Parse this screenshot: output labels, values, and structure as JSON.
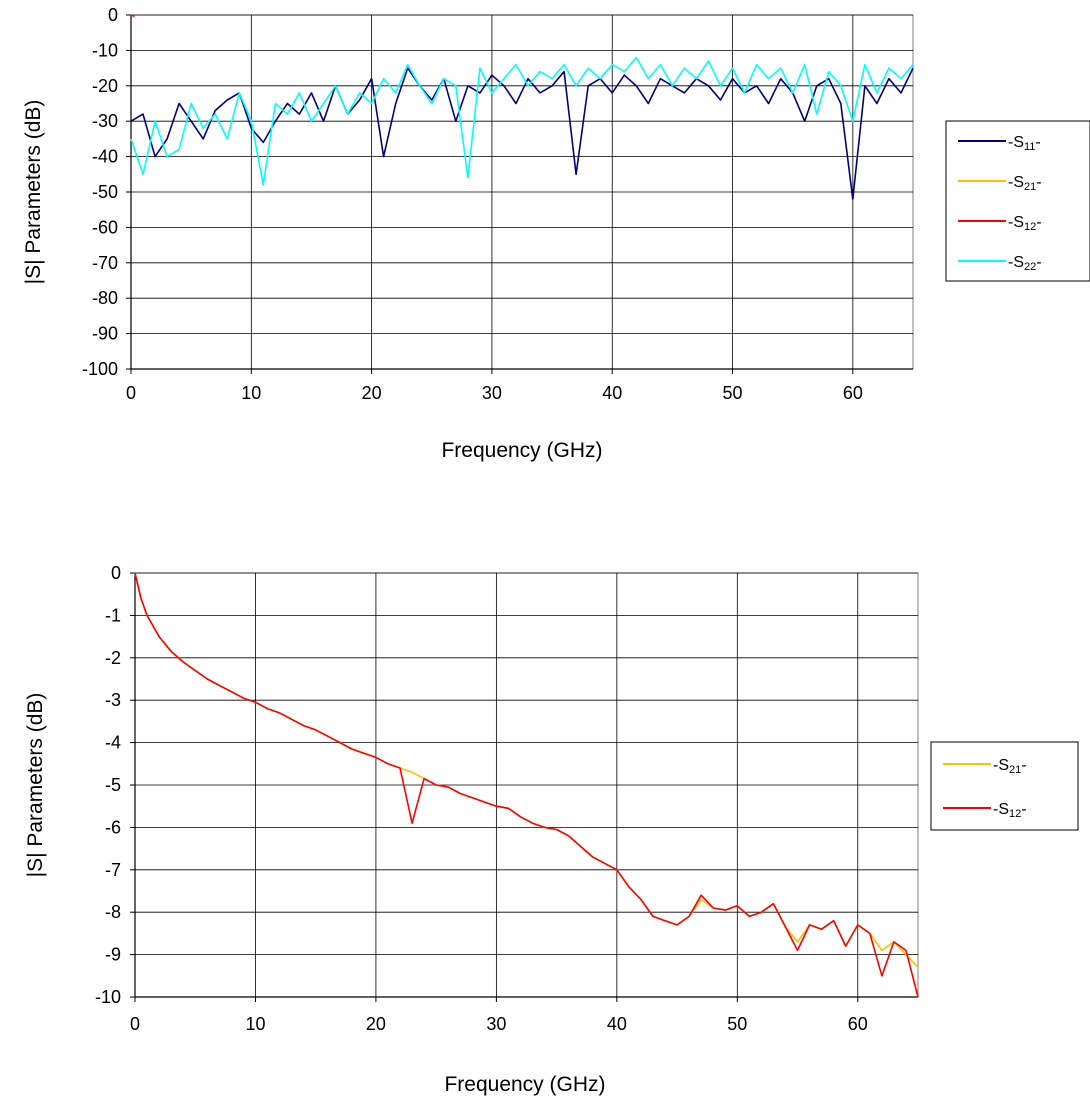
{
  "chart_data": [
    {
      "type": "line",
      "title": "",
      "xlabel": "Frequency (GHz)",
      "ylabel": "|S| Parameters (dB)",
      "xlim": [
        0,
        65
      ],
      "ylim": [
        -100,
        0
      ],
      "xticks": [
        0,
        10,
        20,
        30,
        40,
        50,
        60
      ],
      "yticks": [
        0,
        -10,
        -20,
        -30,
        -40,
        -50,
        -60,
        -70,
        -80,
        -90,
        -100
      ],
      "grid": true,
      "legend_position": "right",
      "legend": [
        {
          "label": "-S",
          "sub": "11",
          "suffix": "-",
          "color": "#000080"
        },
        {
          "label": "-S",
          "sub": "21",
          "suffix": "-",
          "color": "#FFC000"
        },
        {
          "label": "-S",
          "sub": "12",
          "suffix": "-",
          "color": "#FF0000"
        },
        {
          "label": "-S",
          "sub": "22",
          "suffix": "-",
          "color": "#00FFFF"
        }
      ],
      "series": [
        {
          "name": "-S11-",
          "color": "#000080",
          "x": [
            0,
            1,
            2,
            3,
            4,
            5,
            6,
            7,
            8,
            9,
            10,
            11,
            12,
            13,
            14,
            15,
            16,
            17,
            18,
            19,
            20,
            21,
            22,
            23,
            24,
            25,
            26,
            27,
            28,
            29,
            30,
            31,
            32,
            33,
            34,
            35,
            36,
            37,
            38,
            39,
            40,
            41,
            42,
            43,
            44,
            45,
            46,
            47,
            48,
            49,
            50,
            51,
            52,
            53,
            54,
            55,
            56,
            57,
            58,
            59,
            60,
            61,
            62,
            63,
            64,
            65
          ],
          "y": [
            -30,
            -28,
            -40,
            -35,
            -25,
            -30,
            -35,
            -27,
            -24,
            -22,
            -32,
            -36,
            -30,
            -25,
            -28,
            -22,
            -30,
            -20,
            -28,
            -24,
            -18,
            -40,
            -25,
            -15,
            -20,
            -24,
            -18,
            -30,
            -20,
            -22,
            -17,
            -20,
            -25,
            -18,
            -22,
            -20,
            -16,
            -45,
            -20,
            -18,
            -22,
            -17,
            -20,
            -25,
            -18,
            -20,
            -22,
            -18,
            -20,
            -24,
            -18,
            -22,
            -20,
            -25,
            -18,
            -22,
            -30,
            -20,
            -18,
            -25,
            -52,
            -20,
            -25,
            -18,
            -22,
            -15
          ]
        },
        {
          "name": "-S21-",
          "color": "#FFC000",
          "x": [
            0,
            0.3
          ],
          "y": [
            0,
            -0.3
          ]
        },
        {
          "name": "-S12-",
          "color": "#FF0000",
          "x": [
            0,
            0.3
          ],
          "y": [
            0,
            -0.4
          ]
        },
        {
          "name": "-S22-",
          "color": "#00FFFF",
          "x": [
            0,
            1,
            2,
            3,
            4,
            5,
            6,
            7,
            8,
            9,
            10,
            11,
            12,
            13,
            14,
            15,
            16,
            17,
            18,
            19,
            20,
            21,
            22,
            23,
            24,
            25,
            26,
            27,
            28,
            29,
            30,
            31,
            32,
            33,
            34,
            35,
            36,
            37,
            38,
            39,
            40,
            41,
            42,
            43,
            44,
            45,
            46,
            47,
            48,
            49,
            50,
            51,
            52,
            53,
            54,
            55,
            56,
            57,
            58,
            59,
            60,
            61,
            62,
            63,
            64,
            65
          ],
          "y": [
            -35,
            -45,
            -30,
            -40,
            -38,
            -25,
            -32,
            -28,
            -35,
            -22,
            -30,
            -48,
            -25,
            -28,
            -22,
            -30,
            -25,
            -20,
            -28,
            -22,
            -25,
            -18,
            -22,
            -14,
            -20,
            -25,
            -18,
            -20,
            -46,
            -15,
            -22,
            -18,
            -14,
            -20,
            -16,
            -18,
            -14,
            -20,
            -15,
            -18,
            -14,
            -16,
            -12,
            -18,
            -14,
            -20,
            -15,
            -18,
            -13,
            -20,
            -15,
            -22,
            -14,
            -18,
            -15,
            -22,
            -14,
            -28,
            -16,
            -20,
            -30,
            -14,
            -22,
            -15,
            -18,
            -14
          ]
        }
      ]
    },
    {
      "type": "line",
      "title": "",
      "xlabel": "Frequency (GHz)",
      "ylabel": "|S| Parameters (dB)",
      "xlim": [
        0,
        65
      ],
      "ylim": [
        -10,
        0
      ],
      "xticks": [
        0,
        10,
        20,
        30,
        40,
        50,
        60
      ],
      "yticks": [
        0,
        -1,
        -2,
        -3,
        -4,
        -5,
        -6,
        -7,
        -8,
        -9,
        -10
      ],
      "grid": true,
      "legend_position": "right",
      "legend": [
        {
          "label": "-S",
          "sub": "21",
          "suffix": "-",
          "color": "#FFC000"
        },
        {
          "label": "-S",
          "sub": "12",
          "suffix": "-",
          "color": "#FF0000"
        }
      ],
      "series": [
        {
          "name": "-S21-",
          "color": "#FFC000",
          "x": [
            0,
            0.5,
            1,
            2,
            3,
            4,
            5,
            6,
            7,
            8,
            9,
            10,
            11,
            12,
            13,
            14,
            15,
            16,
            17,
            18,
            19,
            20,
            21,
            22,
            23,
            24,
            25,
            26,
            27,
            28,
            29,
            30,
            31,
            32,
            33,
            34,
            35,
            36,
            37,
            38,
            39,
            40,
            41,
            42,
            43,
            44,
            45,
            46,
            47,
            48,
            49,
            50,
            51,
            52,
            53,
            54,
            55,
            56,
            57,
            58,
            59,
            60,
            61,
            62,
            63,
            64,
            65
          ],
          "y": [
            0,
            -0.6,
            -1.0,
            -1.5,
            -1.85,
            -2.1,
            -2.3,
            -2.5,
            -2.65,
            -2.8,
            -2.95,
            -3.05,
            -3.2,
            -3.3,
            -3.45,
            -3.6,
            -3.7,
            -3.85,
            -4.0,
            -4.15,
            -4.25,
            -4.35,
            -4.5,
            -4.6,
            -4.7,
            -4.85,
            -5.0,
            -5.05,
            -5.2,
            -5.3,
            -5.4,
            -5.5,
            -5.55,
            -5.75,
            -5.9,
            -6.0,
            -6.05,
            -6.2,
            -6.45,
            -6.7,
            -6.85,
            -7.0,
            -7.4,
            -7.7,
            -8.1,
            -8.2,
            -8.3,
            -8.1,
            -7.7,
            -7.9,
            -7.95,
            -7.85,
            -8.1,
            -8.0,
            -7.8,
            -8.35,
            -8.7,
            -8.3,
            -8.4,
            -8.2,
            -8.8,
            -8.3,
            -8.5,
            -8.9,
            -8.7,
            -9.0,
            -9.3
          ]
        },
        {
          "name": "-S12-",
          "color": "#FF0000",
          "x": [
            0,
            0.5,
            1,
            2,
            3,
            4,
            5,
            6,
            7,
            8,
            9,
            10,
            11,
            12,
            13,
            14,
            15,
            16,
            17,
            18,
            19,
            20,
            21,
            22,
            23,
            24,
            25,
            26,
            27,
            28,
            29,
            30,
            31,
            32,
            33,
            34,
            35,
            36,
            37,
            38,
            39,
            40,
            41,
            42,
            43,
            44,
            45,
            46,
            47,
            48,
            49,
            50,
            51,
            52,
            53,
            54,
            55,
            56,
            57,
            58,
            59,
            60,
            61,
            62,
            63,
            64,
            65
          ],
          "y": [
            0,
            -0.6,
            -1.0,
            -1.5,
            -1.85,
            -2.1,
            -2.3,
            -2.5,
            -2.65,
            -2.8,
            -2.95,
            -3.05,
            -3.2,
            -3.3,
            -3.45,
            -3.6,
            -3.7,
            -3.85,
            -4.0,
            -4.15,
            -4.25,
            -4.35,
            -4.5,
            -4.6,
            -5.9,
            -4.85,
            -5.0,
            -5.05,
            -5.2,
            -5.3,
            -5.4,
            -5.5,
            -5.55,
            -5.75,
            -5.9,
            -6.0,
            -6.05,
            -6.2,
            -6.45,
            -6.7,
            -6.85,
            -7.0,
            -7.4,
            -7.7,
            -8.1,
            -8.2,
            -8.3,
            -8.1,
            -7.6,
            -7.9,
            -7.95,
            -7.85,
            -8.1,
            -8.0,
            -7.8,
            -8.35,
            -8.9,
            -8.3,
            -8.4,
            -8.2,
            -8.8,
            -8.3,
            -8.5,
            -9.5,
            -8.7,
            -8.9,
            -10.0
          ]
        }
      ]
    }
  ]
}
